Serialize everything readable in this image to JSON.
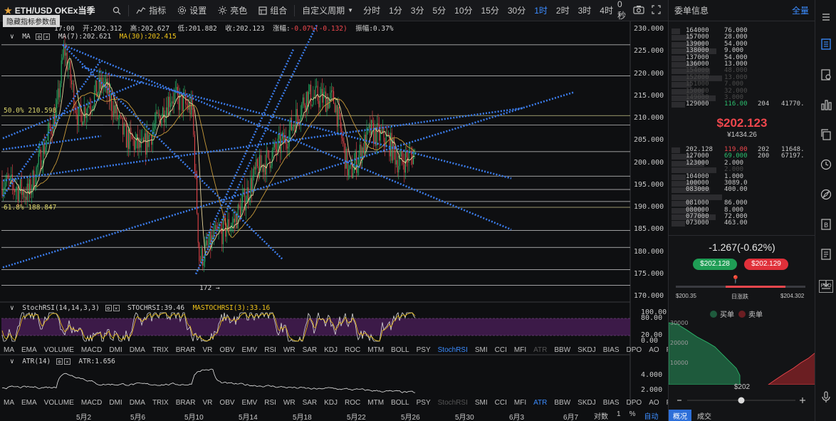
{
  "toolbar": {
    "symbol": "ETH/USD OKEx当季",
    "tools": [
      "指标",
      "设置",
      "亮色",
      "组合"
    ],
    "custom_period": "自定义周期",
    "periods": [
      "分时",
      "1分",
      "3分",
      "5分",
      "10分",
      "15分",
      "30分",
      "1时",
      "2时",
      "3时",
      "4时"
    ],
    "active_period": "1时",
    "countdown": "0秒"
  },
  "hint": "隐藏指标参数值",
  "ohlc": {
    "time": "17:00",
    "open": "开:202.312",
    "high": "高:202.627",
    "low": "低:201.882",
    "close": "收:202.123",
    "change": "-0.07%(-0.132)",
    "change_label": "涨幅:",
    "amplitude": "振幅:0.37%"
  },
  "ma_legend": {
    "name": "MA",
    "ma7": "MA(7):202.621",
    "ma30": "MA(30):202.415"
  },
  "fib": {
    "l50": "50.0% 210.598",
    "l618": "61.8% 188.847"
  },
  "low_marker": "172 →",
  "price_axis": [
    "230.000",
    "225.000",
    "220.000",
    "215.000",
    "210.000",
    "205.000",
    "200.000",
    "195.000",
    "190.000",
    "185.000",
    "180.000",
    "175.000",
    "170.000"
  ],
  "stoch_legend": {
    "name": "StochRSI(14,14,3,3)",
    "stoch": "STOCHRSI:39.46",
    "ma": "MASTOCHRSI(3):33.16"
  },
  "stoch_axis": [
    "100.00",
    "80.00",
    "20.00",
    "0.00"
  ],
  "atr_legend": {
    "name": "ATR(14)",
    "value": "ATR:1.656"
  },
  "atr_axis": [
    "4.000",
    "2.000"
  ],
  "indicators1": [
    "MA",
    "EMA",
    "VOLUME",
    "MACD",
    "DMI",
    "DMA",
    "TRIX",
    "BRAR",
    "VR",
    "OBV",
    "EMV",
    "RSI",
    "WR",
    "SAR",
    "KDJ",
    "ROC",
    "MTM",
    "BOLL",
    "PSY",
    "StochRSI",
    "SMI",
    "CCI",
    "MFI",
    "ATR",
    "BBW",
    "SKDJ",
    "BIAS",
    "DPO",
    "AO",
    "Position"
  ],
  "indicators1_active": "StochRSI",
  "indicators2_active": "ATR",
  "dates": [
    "5月2",
    "5月6",
    "5月10",
    "5月14",
    "5月18",
    "5月22",
    "5月26",
    "5月30",
    "6月3",
    "6月7"
  ],
  "bottom_tabs": [
    "对数",
    "1",
    "%",
    "自动"
  ],
  "panel": {
    "title": "委单信息",
    "all": "全量",
    "asks": [
      {
        "p": "164000",
        "q": "76.000",
        "faded": false
      },
      {
        "p": "157000",
        "q": "28.000",
        "faded": false
      },
      {
        "p": "139000",
        "q": "54.000",
        "faded": false
      },
      {
        "p": "138000",
        "q": "9.000",
        "faded": false
      },
      {
        "p": "137000",
        "q": "54.000",
        "faded": false
      },
      {
        "p": "136000",
        "q": "13.000",
        "faded": false
      },
      {
        "p": "154000",
        "q": "48.000",
        "faded": true
      },
      {
        "p": "152000",
        "q": "13.000",
        "faded": true
      },
      {
        "p": "151000",
        "q": "7.000",
        "faded": true
      },
      {
        "p": "150000",
        "q": "32.000",
        "faded": true
      },
      {
        "p": "149000",
        "q": "3.000",
        "faded": true
      },
      {
        "p": "129000",
        "q": "116.00",
        "faded": false,
        "x": "204",
        "y": "41770."
      }
    ],
    "last_price": "$202.123",
    "last_cny": "¥1434.26",
    "bids": [
      {
        "p": "202.128",
        "q": "119.00",
        "faded": false,
        "x": "202",
        "y": "11648."
      },
      {
        "p": "127000",
        "q": "69.000",
        "faded": false,
        "x": "200",
        "y": "67197."
      },
      {
        "p": "123000",
        "q": "2.000",
        "faded": false
      },
      {
        "p": "",
        "q": "2.000",
        "faded": true
      },
      {
        "p": "104000",
        "q": "1.000",
        "faded": false
      },
      {
        "p": "100000",
        "q": "3089.0",
        "faded": false
      },
      {
        "p": "083000",
        "q": "400.00",
        "faded": false
      },
      {
        "p": "",
        "q": "",
        "faded": true
      },
      {
        "p": "081000",
        "q": "86.000",
        "faded": false
      },
      {
        "p": "080000",
        "q": "8.000",
        "faded": false
      },
      {
        "p": "077000",
        "q": "72.000",
        "faded": false
      },
      {
        "p": "073000",
        "q": "463.00",
        "faded": false
      }
    ],
    "change": "-1.267(-0.62%)",
    "bid_btn": "$202.128",
    "ask_btn": "$202.129",
    "range_low": "$200.35",
    "range_mid": "日涨跌",
    "range_high": "$204.302",
    "buy_label": "买单",
    "sell_label": "卖单",
    "depth_axis": [
      "30000",
      "20000",
      "10000"
    ],
    "depth_center": "$202"
  },
  "rail_tab": "PRO",
  "tabs_bottom": [
    "概况",
    "成交"
  ],
  "colors": {
    "up": "#2bbf6e",
    "down": "#f0474d",
    "accent": "#3b8cff",
    "trend": "#3b7be8",
    "ma7": "#e8d59a",
    "ma30": "#c89a3a"
  }
}
